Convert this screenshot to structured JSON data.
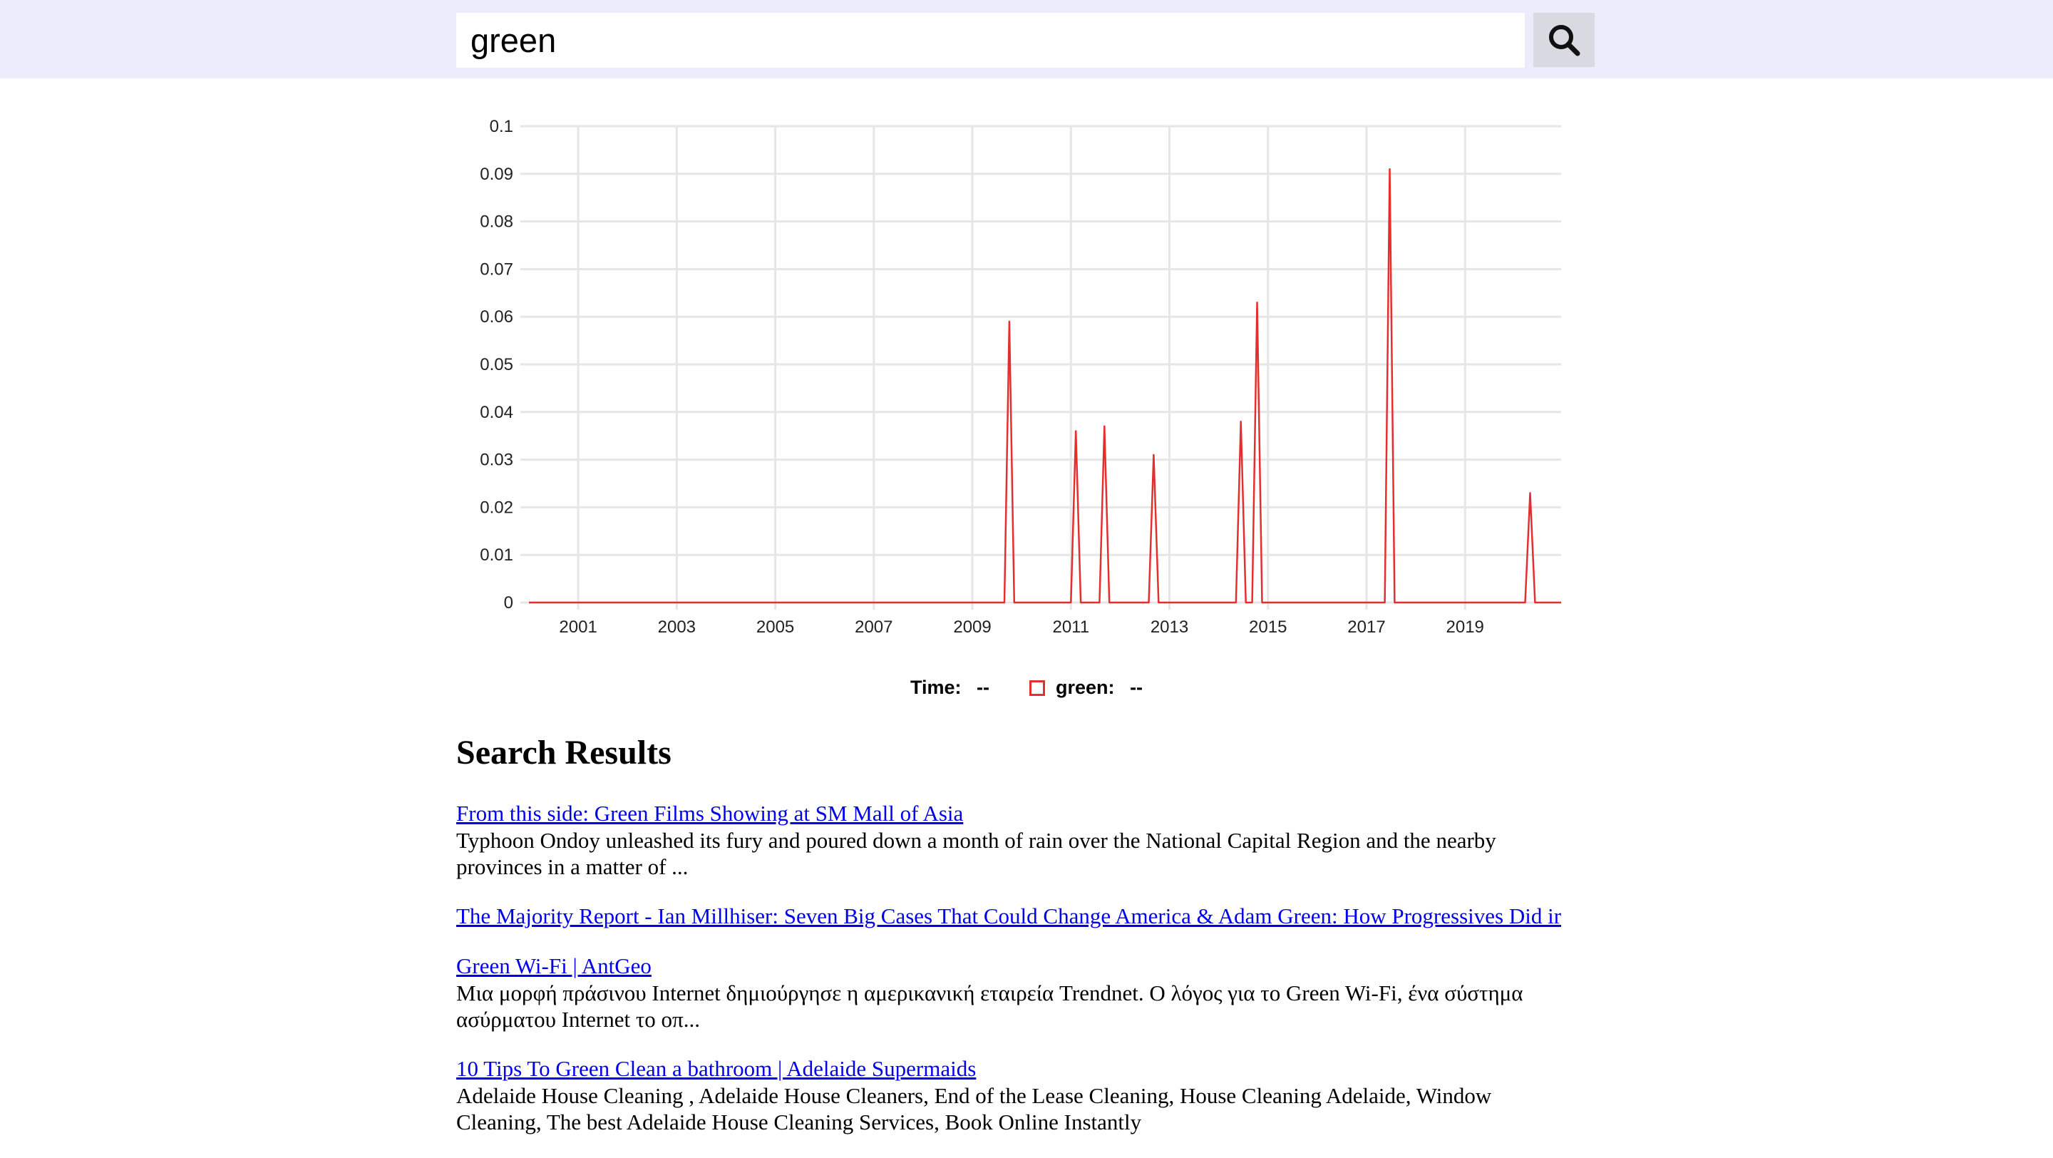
{
  "search": {
    "query": "green"
  },
  "chart_data": {
    "type": "line",
    "title": "",
    "xlabel": "",
    "ylabel": "",
    "ylim": [
      0,
      0.1
    ],
    "yticks": [
      "0",
      "0.01",
      "0.02",
      "0.03",
      "0.04",
      "0.05",
      "0.06",
      "0.07",
      "0.08",
      "0.09",
      "0.1"
    ],
    "xticks": [
      "2001",
      "2003",
      "2005",
      "2007",
      "2009",
      "2011",
      "2013",
      "2015",
      "2017",
      "2019"
    ],
    "xlim": [
      2000.0,
      2020.95
    ],
    "grid": true,
    "line_color": "#e3302f",
    "series": [
      {
        "name": "green",
        "x": [
          2000.0,
          2009.65,
          2009.75,
          2009.85,
          2011.0,
          2011.1,
          2011.2,
          2011.58,
          2011.68,
          2011.78,
          2012.58,
          2012.68,
          2012.78,
          2014.35,
          2014.45,
          2014.55,
          2014.68,
          2014.78,
          2014.88,
          2017.37,
          2017.47,
          2017.57,
          2020.22,
          2020.32,
          2020.42,
          2020.95
        ],
        "y": [
          0,
          0,
          0.059,
          0,
          0,
          0.036,
          0,
          0,
          0.037,
          0,
          0,
          0.031,
          0,
          0,
          0.038,
          0,
          0,
          0.063,
          0,
          0,
          0.091,
          0,
          0,
          0.023,
          0,
          0
        ]
      }
    ]
  },
  "legend": {
    "time_label": "Time:",
    "time_value": "--",
    "series_label": "green:",
    "series_value": "--"
  },
  "results": {
    "heading": "Search Results",
    "items": [
      {
        "title": "From this side: Green Films Showing at SM Mall of Asia",
        "snippet": "Typhoon Ondoy unleashed its fury and poured down a month of rain over the National Capital Region and the nearby provinces in a matter of ..."
      },
      {
        "title": "The Majority Report - Ian Millhiser: Seven Big Cases That Could Change America & Adam Green: How Progressives Did ir",
        "snippet": ""
      },
      {
        "title": "Green Wi-Fi | AntGeo",
        "snippet": "Μια μορφή πράσινου Internet δημιούργησε η αμερικανική εταιρεία Trendnet. Ο λόγος για το Green Wi-Fi, ένα σύστημα ασύρματου Internet το οπ..."
      },
      {
        "title": "10 Tips To Green Clean a bathroom | Adelaide Supermaids",
        "snippet": "Adelaide House Cleaning , Adelaide House Cleaners, End of the Lease Cleaning, House Cleaning Adelaide, Window Cleaning, The best Adelaide House Cleaning Services, Book Online Instantly"
      }
    ]
  }
}
